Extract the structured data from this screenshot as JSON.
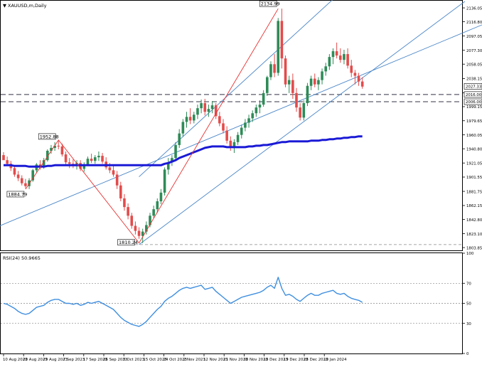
{
  "window": {
    "symbol_label": "XAUUSD,m,Daily",
    "rsi_label": "RSI(24) 50.9665"
  },
  "colors": {
    "bull": "#2e8b57",
    "bear": "#e34b4b",
    "ma": "#1a1ad6",
    "channel": "#4a86c8",
    "zigzag": "#e83030",
    "rsi": "#3f8fe0",
    "grid_dash": "#888888",
    "dashed_line": "#333344",
    "price_tag_bg": "#ffffff"
  },
  "chart_data": [
    {
      "type": "candlestick",
      "title": "",
      "ylim": [
        1800,
        2145
      ],
      "y_ticks": [
        "2136.05",
        "2116.80",
        "2097.05",
        "2077.30",
        "2058.05",
        "2038.15",
        "2018.40",
        "1999.15",
        "1979.65",
        "1960.05",
        "1940.80",
        "1921.05",
        "1901.55",
        "1881.75",
        "1862.15",
        "1842.80",
        "1823.10",
        "1803.85"
      ],
      "x_ticks": [
        "10 Aug 2023",
        "20 Aug 2023",
        "29 Aug 2023",
        "7 Sep 2023",
        "17 Sep 2023",
        "26 Sep 2023",
        "5 Oct 2023",
        "15 Oct 2023",
        "24 Oct 2023",
        "2 Nov 2023",
        "12 Nov 2023",
        "21 Nov 2023",
        "30 Nov 2023",
        "10 Dec 2023",
        "19 Dec 2023",
        "28 Dec 2023",
        "10 Jan 2024"
      ],
      "candles": [
        [
          1932,
          1936,
          1928,
          1925
        ],
        [
          1925,
          1930,
          1917,
          1920
        ],
        [
          1920,
          1924,
          1910,
          1914
        ],
        [
          1914,
          1918,
          1902,
          1905
        ],
        [
          1905,
          1910,
          1896,
          1900
        ],
        [
          1900,
          1904,
          1890,
          1893
        ],
        [
          1893,
          1899,
          1886,
          1889
        ],
        [
          1889,
          1900,
          1885,
          1897
        ],
        [
          1897,
          1913,
          1895,
          1911
        ],
        [
          1911,
          1921,
          1908,
          1919
        ],
        [
          1919,
          1925,
          1912,
          1915
        ],
        [
          1915,
          1928,
          1913,
          1925
        ],
        [
          1925,
          1940,
          1923,
          1938
        ],
        [
          1938,
          1946,
          1934,
          1942
        ],
        [
          1942,
          1950,
          1938,
          1945
        ],
        [
          1945,
          1952,
          1940,
          1944
        ],
        [
          1944,
          1948,
          1930,
          1933
        ],
        [
          1933,
          1937,
          1918,
          1922
        ],
        [
          1922,
          1928,
          1914,
          1920
        ],
        [
          1920,
          1926,
          1914,
          1917
        ],
        [
          1917,
          1925,
          1912,
          1921
        ],
        [
          1921,
          1925,
          1910,
          1913
        ],
        [
          1913,
          1922,
          1909,
          1919
        ],
        [
          1919,
          1930,
          1917,
          1927
        ],
        [
          1927,
          1934,
          1921,
          1924
        ],
        [
          1924,
          1932,
          1920,
          1929
        ],
        [
          1929,
          1937,
          1924,
          1931
        ],
        [
          1931,
          1935,
          1920,
          1923
        ],
        [
          1923,
          1929,
          1912,
          1915
        ],
        [
          1915,
          1921,
          1907,
          1911
        ],
        [
          1911,
          1919,
          1902,
          1905
        ],
        [
          1905,
          1910,
          1885,
          1890
        ],
        [
          1890,
          1895,
          1868,
          1872
        ],
        [
          1872,
          1878,
          1855,
          1860
        ],
        [
          1860,
          1865,
          1843,
          1848
        ],
        [
          1848,
          1852,
          1830,
          1834
        ],
        [
          1834,
          1840,
          1822,
          1827
        ],
        [
          1827,
          1832,
          1816,
          1820
        ],
        [
          1820,
          1830,
          1810,
          1826
        ],
        [
          1826,
          1840,
          1822,
          1835
        ],
        [
          1835,
          1852,
          1832,
          1848
        ],
        [
          1848,
          1862,
          1845,
          1857
        ],
        [
          1857,
          1872,
          1852,
          1868
        ],
        [
          1868,
          1885,
          1864,
          1880
        ],
        [
          1880,
          1915,
          1876,
          1912
        ],
        [
          1912,
          1928,
          1905,
          1922
        ],
        [
          1922,
          1932,
          1917,
          1928
        ],
        [
          1928,
          1950,
          1924,
          1946
        ],
        [
          1946,
          1968,
          1942,
          1962
        ],
        [
          1962,
          1982,
          1958,
          1978
        ],
        [
          1978,
          1992,
          1970,
          1985
        ],
        [
          1985,
          1997,
          1975,
          1980
        ],
        [
          1980,
          1992,
          1976,
          1988
        ],
        [
          1988,
          2002,
          1982,
          1997
        ],
        [
          1997,
          2009,
          1990,
          2004
        ],
        [
          2004,
          2010,
          1987,
          1992
        ],
        [
          1992,
          2002,
          1985,
          1996
        ],
        [
          1996,
          2007,
          1990,
          2001
        ],
        [
          2001,
          2004,
          1982,
          1986
        ],
        [
          1986,
          1992,
          1972,
          1976
        ],
        [
          1976,
          1982,
          1962,
          1966
        ],
        [
          1966,
          1972,
          1948,
          1952
        ],
        [
          1952,
          1958,
          1938,
          1942
        ],
        [
          1942,
          1954,
          1935,
          1950
        ],
        [
          1950,
          1964,
          1946,
          1960
        ],
        [
          1960,
          1974,
          1955,
          1970
        ],
        [
          1970,
          1982,
          1965,
          1977
        ],
        [
          1977,
          1988,
          1970,
          1983
        ],
        [
          1983,
          1994,
          1978,
          1990
        ],
        [
          1990,
          2002,
          1985,
          1998
        ],
        [
          1998,
          2008,
          1990,
          2002
        ],
        [
          2002,
          2022,
          1999,
          2018
        ],
        [
          2018,
          2042,
          2014,
          2040
        ],
        [
          2040,
          2062,
          2036,
          2058
        ],
        [
          2058,
          2072,
          2040,
          2046
        ],
        [
          2046,
          2122,
          2042,
          2118
        ],
        [
          2118,
          2135,
          2052,
          2066
        ],
        [
          2066,
          2070,
          2026,
          2030
        ],
        [
          2030,
          2042,
          2018,
          2036
        ],
        [
          2036,
          2045,
          2010,
          2018
        ],
        [
          2018,
          2025,
          1992,
          1998
        ],
        [
          1998,
          2004,
          1980,
          1984
        ],
        [
          1984,
          2008,
          1980,
          2004
        ],
        [
          2004,
          2032,
          2000,
          2028
        ],
        [
          2028,
          2042,
          2022,
          2038
        ],
        [
          2038,
          2045,
          2026,
          2030
        ],
        [
          2030,
          2040,
          2022,
          2036
        ],
        [
          2036,
          2052,
          2030,
          2048
        ],
        [
          2048,
          2060,
          2042,
          2055
        ],
        [
          2055,
          2072,
          2050,
          2068
        ],
        [
          2068,
          2080,
          2058,
          2076
        ],
        [
          2076,
          2088,
          2066,
          2070
        ],
        [
          2070,
          2080,
          2060,
          2064
        ],
        [
          2064,
          2078,
          2058,
          2072
        ],
        [
          2072,
          2080,
          2052,
          2056
        ],
        [
          2056,
          2064,
          2040,
          2046
        ],
        [
          2046,
          2050,
          2030,
          2042
        ],
        [
          2042,
          2046,
          2028,
          2034
        ],
        [
          2034,
          2040,
          2024,
          2027
        ]
      ],
      "moving_average": [
        1918,
        1918,
        1918,
        1917,
        1917,
        1917,
        1917,
        1916,
        1916,
        1916,
        1916,
        1916,
        1917,
        1917,
        1918,
        1918,
        1918,
        1918,
        1918,
        1918,
        1918,
        1918,
        1918,
        1918,
        1918,
        1918,
        1918,
        1918,
        1918,
        1918,
        1918,
        1918,
        1918,
        1918,
        1918,
        1918,
        1918,
        1918,
        1918,
        1918,
        1918,
        1918,
        1918,
        1918,
        1920,
        1921,
        1923,
        1925,
        1928,
        1930,
        1932,
        1934,
        1936,
        1938,
        1940,
        1942,
        1943,
        1944,
        1944,
        1944,
        1944,
        1943,
        1943,
        1943,
        1943,
        1943,
        1943,
        1944,
        1944,
        1945,
        1945,
        1946,
        1946,
        1947,
        1948,
        1949,
        1950,
        1950,
        1951,
        1951,
        1951,
        1951,
        1951,
        1951,
        1952,
        1952,
        1952,
        1953,
        1953,
        1954,
        1954,
        1955,
        1955,
        1956,
        1956,
        1957,
        1957,
        1958,
        1958
      ],
      "zigzag": [
        {
          "index": 6,
          "value": 1884.79,
          "label": "1884.79"
        },
        {
          "index": 15,
          "value": 1952.88,
          "label": "1952.88"
        },
        {
          "index": 37,
          "value": 1810.24,
          "label": "1810.24"
        },
        {
          "index": 75,
          "value": 2134.99,
          "label": "2134.99"
        }
      ],
      "channel": {
        "lower_start": {
          "index": -2,
          "value": 1832
        },
        "lower_end": {
          "index": 138,
          "value": 2128
        },
        "upper_start": {
          "index": 37,
          "value": 1902
        },
        "upper_end": {
          "index": 90,
          "value": 2148
        }
      },
      "horizontal_levels": [
        {
          "value": 2016.0,
          "label": "2016.00"
        },
        {
          "value": 2006.0,
          "label": "2006.00"
        }
      ],
      "support_line": {
        "value": 1808
      },
      "current_price": {
        "value": 2027.33,
        "label": "2027.33"
      }
    },
    {
      "type": "line",
      "title": "RSI(24) 50.9665",
      "ylim": [
        0,
        100
      ],
      "y_ticks": [
        "100",
        "70",
        "50",
        "30",
        "0"
      ],
      "levels": [
        70,
        50,
        30
      ],
      "values": [
        50,
        49,
        47,
        45,
        42,
        40,
        39,
        40,
        43,
        46,
        47,
        48,
        51,
        53,
        54,
        54,
        52,
        50,
        50,
        49,
        50,
        48,
        49,
        51,
        50,
        51,
        52,
        50,
        48,
        46,
        44,
        40,
        36,
        33,
        31,
        29,
        28,
        27,
        29,
        32,
        36,
        40,
        44,
        47,
        52,
        55,
        57,
        60,
        63,
        65,
        66,
        65,
        66,
        67,
        68,
        64,
        65,
        66,
        62,
        59,
        56,
        53,
        50,
        52,
        54,
        56,
        57,
        58,
        59,
        60,
        61,
        63,
        66,
        68,
        65,
        76,
        65,
        58,
        59,
        57,
        54,
        52,
        55,
        58,
        60,
        58,
        58,
        60,
        61,
        62,
        63,
        60,
        59,
        60,
        57,
        55,
        54,
        53,
        51
      ]
    }
  ]
}
